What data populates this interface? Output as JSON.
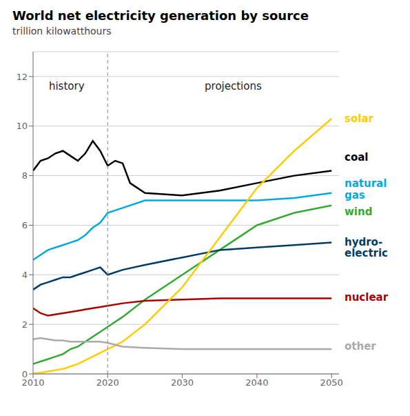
{
  "chart_data": {
    "type": "line",
    "title": "World net electricity generation by source",
    "subtitle": "trillion kilowatthours",
    "xlim": [
      2010,
      2051
    ],
    "ylim": [
      0,
      13
    ],
    "xticks": [
      2010,
      2020,
      2030,
      2040,
      2050
    ],
    "yticks": [
      0,
      2,
      4,
      6,
      8,
      10,
      12
    ],
    "grid": "y",
    "series": [
      {
        "name": "coal",
        "color": "#000000",
        "label_y": 8.75,
        "x": [
          2010,
          2011,
          2012,
          2013,
          2014,
          2015,
          2016,
          2017,
          2018,
          2019,
          2020,
          2021,
          2022,
          2023,
          2025,
          2030,
          2035,
          2040,
          2045,
          2050
        ],
        "values": [
          8.2,
          8.6,
          8.7,
          8.9,
          9.0,
          8.8,
          8.6,
          8.9,
          9.4,
          9.0,
          8.4,
          8.6,
          8.5,
          7.7,
          7.3,
          7.2,
          7.4,
          7.7,
          8.0,
          8.2
        ]
      },
      {
        "name": "natural\ngas",
        "color": "#00aadd",
        "label_y": 7.45,
        "x": [
          2010,
          2011,
          2012,
          2013,
          2014,
          2015,
          2016,
          2017,
          2018,
          2019,
          2020,
          2022,
          2025,
          2030,
          2035,
          2040,
          2045,
          2050
        ],
        "values": [
          4.6,
          4.8,
          5.0,
          5.1,
          5.2,
          5.3,
          5.4,
          5.6,
          5.9,
          6.1,
          6.5,
          6.7,
          7.0,
          7.0,
          7.0,
          7.0,
          7.1,
          7.3
        ]
      },
      {
        "name": "wind",
        "color": "#33aa33",
        "label_y": 6.55,
        "x": [
          2010,
          2011,
          2012,
          2013,
          2014,
          2015,
          2016,
          2017,
          2018,
          2019,
          2020,
          2022,
          2025,
          2030,
          2035,
          2040,
          2045,
          2050
        ],
        "values": [
          0.4,
          0.5,
          0.6,
          0.7,
          0.8,
          1.0,
          1.1,
          1.3,
          1.5,
          1.7,
          1.9,
          2.3,
          3.0,
          4.0,
          5.0,
          6.0,
          6.5,
          6.8
        ]
      },
      {
        "name": "hydro-\nelectric",
        "color": "#003d66",
        "label_y": 5.1,
        "x": [
          2010,
          2011,
          2012,
          2013,
          2014,
          2015,
          2016,
          2017,
          2018,
          2019,
          2020,
          2022,
          2025,
          2030,
          2035,
          2040,
          2045,
          2050
        ],
        "values": [
          3.4,
          3.6,
          3.7,
          3.8,
          3.9,
          3.9,
          4.0,
          4.1,
          4.2,
          4.3,
          4.0,
          4.2,
          4.4,
          4.7,
          5.0,
          5.1,
          5.2,
          5.3
        ]
      },
      {
        "name": "nuclear",
        "color": "#aa0000",
        "label_y": 3.1,
        "x": [
          2010,
          2011,
          2012,
          2013,
          2014,
          2015,
          2016,
          2017,
          2018,
          2019,
          2020,
          2022,
          2025,
          2030,
          2035,
          2040,
          2045,
          2050
        ],
        "values": [
          2.65,
          2.45,
          2.35,
          2.4,
          2.45,
          2.5,
          2.55,
          2.6,
          2.65,
          2.7,
          2.75,
          2.85,
          2.95,
          3.0,
          3.05,
          3.05,
          3.05,
          3.05
        ]
      },
      {
        "name": "solar",
        "color": "#ffcc00",
        "label_y": 10.3,
        "x": [
          2010,
          2011,
          2012,
          2013,
          2014,
          2015,
          2016,
          2017,
          2018,
          2019,
          2020,
          2022,
          2025,
          2030,
          2035,
          2040,
          2045,
          2050
        ],
        "values": [
          0.02,
          0.05,
          0.1,
          0.15,
          0.2,
          0.3,
          0.4,
          0.55,
          0.7,
          0.85,
          1.0,
          1.3,
          2.0,
          3.5,
          5.5,
          7.5,
          9.0,
          10.3
        ]
      },
      {
        "name": "other",
        "color": "#aaaaaa",
        "label_y": 1.1,
        "x": [
          2010,
          2011,
          2012,
          2013,
          2014,
          2015,
          2016,
          2017,
          2018,
          2019,
          2020,
          2022,
          2025,
          2030,
          2035,
          2040,
          2045,
          2050
        ],
        "values": [
          1.4,
          1.45,
          1.4,
          1.35,
          1.35,
          1.3,
          1.3,
          1.3,
          1.3,
          1.3,
          1.25,
          1.1,
          1.05,
          1.0,
          1.0,
          1.0,
          1.0,
          1.0
        ]
      }
    ],
    "annotations": [
      {
        "text": "history",
        "x": 2014.5,
        "y": 11.6
      },
      {
        "text": "projections",
        "x": 2033,
        "y": 11.6
      }
    ],
    "reference_lines": [
      {
        "x": 2020,
        "line_style": "dashed"
      }
    ]
  }
}
